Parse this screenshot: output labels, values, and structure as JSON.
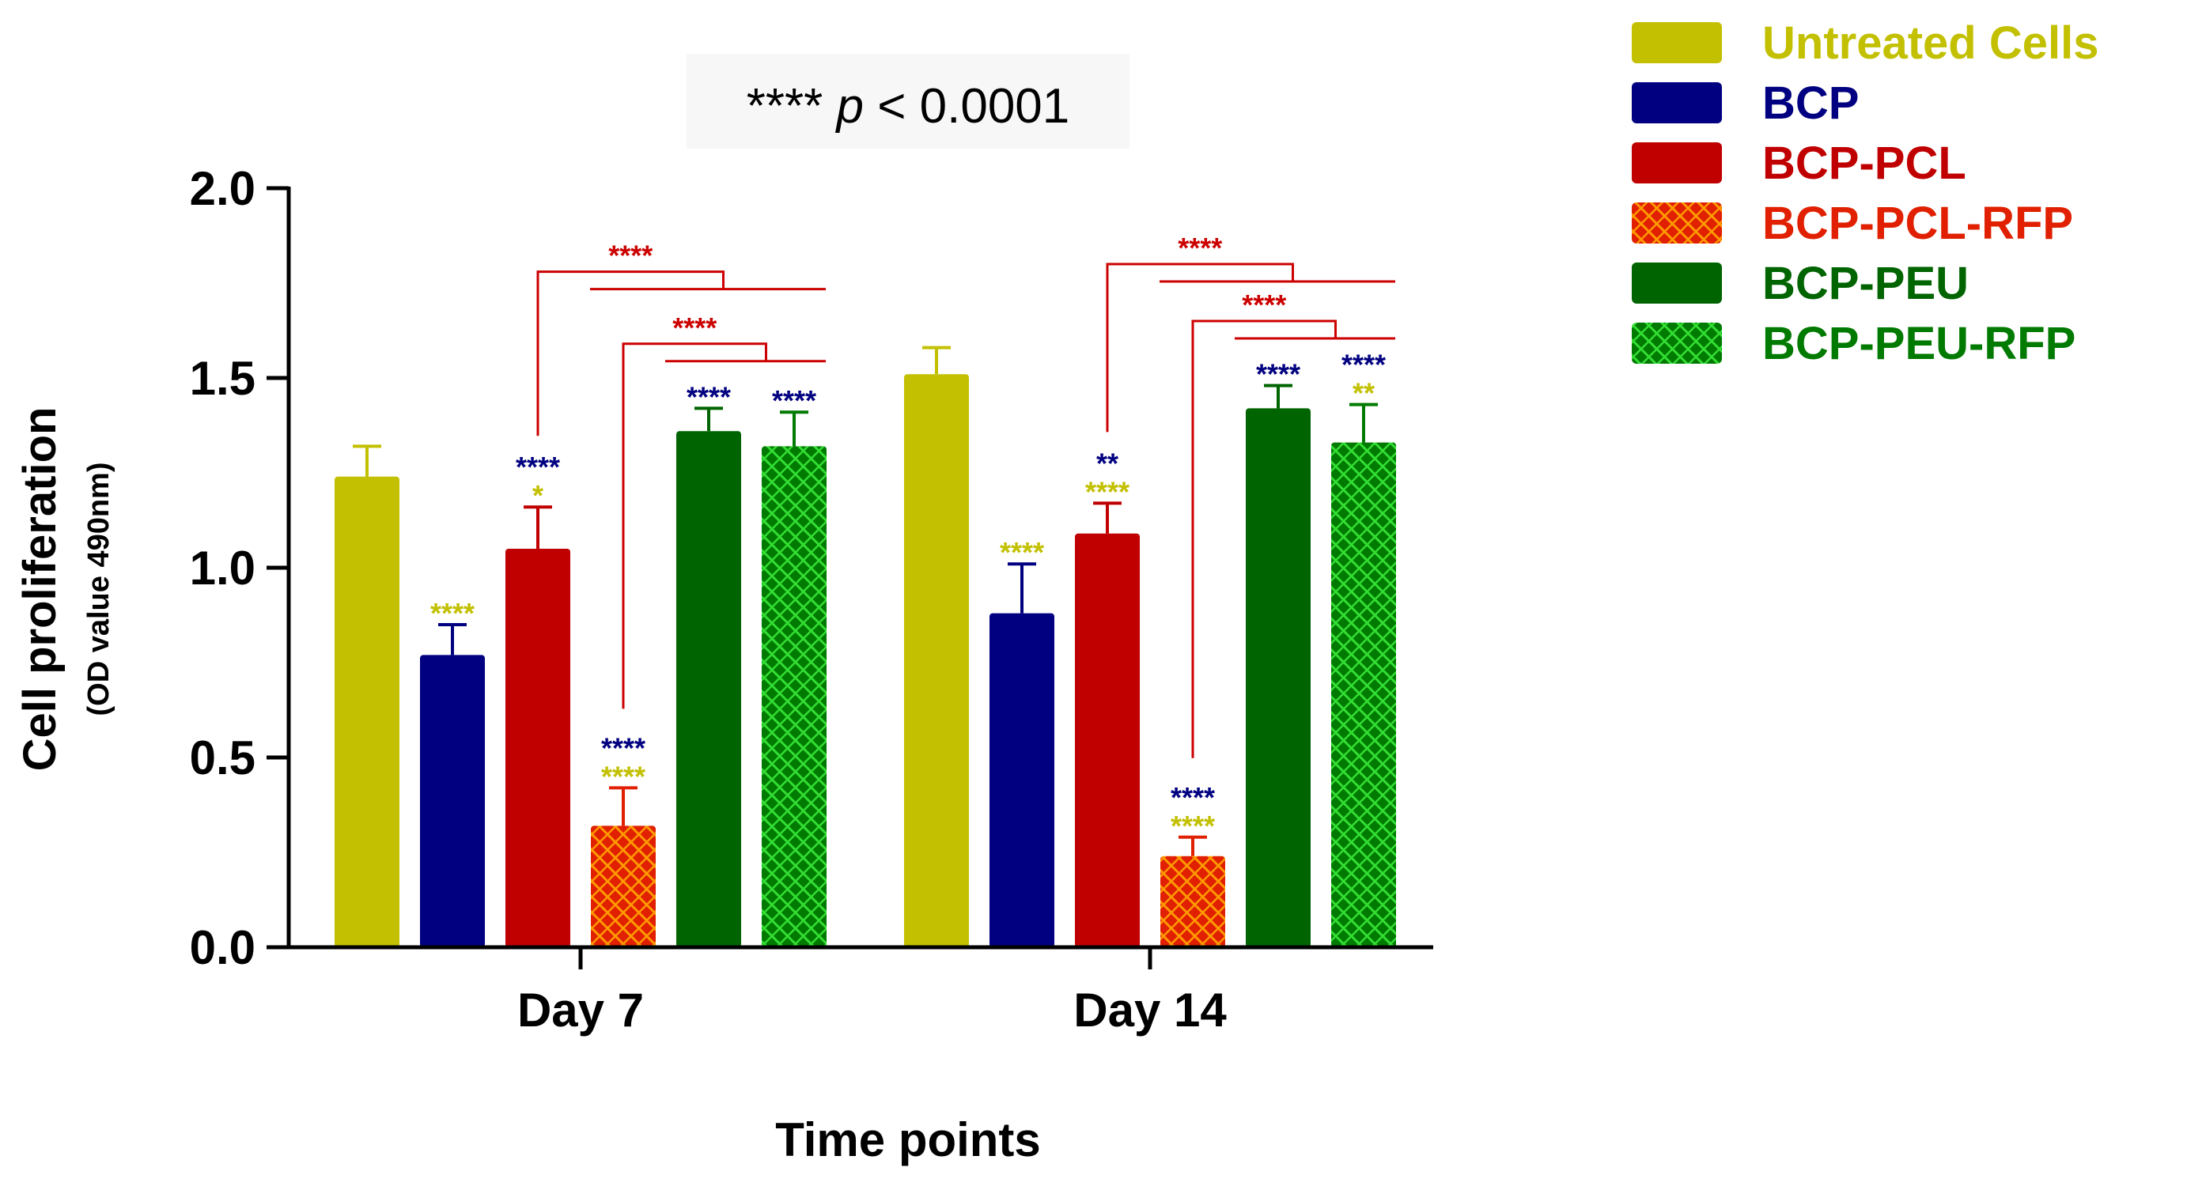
{
  "chart_data": {
    "type": "bar",
    "annotation": "**** ",
    "annotation_p": "p",
    "annotation_rest": " < 0.0001",
    "ylabel": "Cell proliferation",
    "ylabel_sub": "(OD value 490nm)",
    "xlabel": "Time points",
    "ylim": [
      0,
      2.0
    ],
    "yticks": [
      "0.0",
      "0.5",
      "1.0",
      "1.5",
      "2.0"
    ],
    "ytick_values": [
      0,
      0.5,
      1.0,
      1.5,
      2.0
    ],
    "categories": [
      "Day 7",
      "Day 14"
    ],
    "series": [
      {
        "name": "Untreated Cells",
        "color": "#c2c000",
        "hatch": false,
        "values": [
          1.24,
          1.51
        ],
        "errors": [
          0.08,
          0.07
        ]
      },
      {
        "name": "BCP",
        "color": "#000080",
        "hatch": false,
        "values": [
          0.77,
          0.88
        ],
        "errors": [
          0.08,
          0.13
        ]
      },
      {
        "name": "BCP-PCL",
        "color": "#c00000",
        "hatch": false,
        "values": [
          1.05,
          1.09
        ],
        "errors": [
          0.11,
          0.08
        ]
      },
      {
        "name": "BCP-PCL-RFP",
        "color": "#e02000",
        "hatch": true,
        "hatch_color": "#ff9900",
        "values": [
          0.32,
          0.24
        ],
        "errors": [
          0.1,
          0.05
        ]
      },
      {
        "name": "BCP-PEU",
        "color": "#006400",
        "hatch": false,
        "values": [
          1.36,
          1.42
        ],
        "errors": [
          0.06,
          0.06
        ]
      },
      {
        "name": "BCP-PEU-RFP",
        "color": "#007a00",
        "hatch": true,
        "hatch_color": "#33dd33",
        "values": [
          1.32,
          1.33
        ],
        "errors": [
          0.09,
          0.1
        ]
      }
    ],
    "significance": [
      {
        "category": 0,
        "series": 1,
        "lines": [
          {
            "text": "****",
            "color": "#c2c000"
          }
        ]
      },
      {
        "category": 0,
        "series": 2,
        "lines": [
          {
            "text": "****",
            "color": "#000080"
          },
          {
            "text": "*",
            "color": "#c2c000"
          }
        ]
      },
      {
        "category": 0,
        "series": 3,
        "lines": [
          {
            "text": "****",
            "color": "#000080"
          },
          {
            "text": "****",
            "color": "#c2c000"
          }
        ]
      },
      {
        "category": 0,
        "series": 4,
        "lines": [
          {
            "text": "****",
            "color": "#000080"
          }
        ]
      },
      {
        "category": 0,
        "series": 5,
        "lines": [
          {
            "text": "****",
            "color": "#000080"
          }
        ]
      },
      {
        "category": 1,
        "series": 1,
        "lines": [
          {
            "text": "****",
            "color": "#c2c000"
          }
        ]
      },
      {
        "category": 1,
        "series": 2,
        "lines": [
          {
            "text": "**",
            "color": "#000080"
          },
          {
            "text": "****",
            "color": "#c2c000"
          }
        ]
      },
      {
        "category": 1,
        "series": 3,
        "lines": [
          {
            "text": "****",
            "color": "#000080"
          },
          {
            "text": "****",
            "color": "#c2c000"
          }
        ]
      },
      {
        "category": 1,
        "series": 4,
        "lines": [
          {
            "text": "****",
            "color": "#000080"
          }
        ]
      },
      {
        "category": 1,
        "series": 5,
        "lines": [
          {
            "text": "****",
            "color": "#000080"
          },
          {
            "text": "**",
            "color": "#c2c000"
          }
        ]
      }
    ],
    "brackets": [
      {
        "category": 0,
        "from_series": 2,
        "to_series": [
          4,
          5
        ],
        "top": 1.78,
        "label": "****",
        "color": "#cc0000"
      },
      {
        "category": 0,
        "from_series": 3,
        "to_series": [
          4,
          5
        ],
        "top": 1.59,
        "label": "****",
        "color": "#cc0000"
      },
      {
        "category": 1,
        "from_series": 2,
        "to_series": [
          4,
          5
        ],
        "top": 1.8,
        "label": "****",
        "color": "#cc0000"
      },
      {
        "category": 1,
        "from_series": 3,
        "to_series": [
          4,
          5
        ],
        "top": 1.65,
        "label": "****",
        "color": "#cc0000"
      }
    ],
    "legend_position": "top-right"
  }
}
